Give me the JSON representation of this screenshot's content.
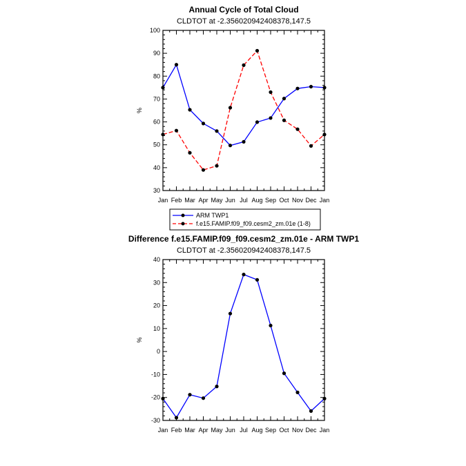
{
  "chart_data": [
    {
      "type": "line",
      "title": "Annual Cycle of Total Cloud",
      "subtitle": "CLDTOT at -2.356020942408378,147.5",
      "ylabel": "%",
      "xlabel": "",
      "ylim": [
        30,
        100
      ],
      "yticks": [
        30,
        40,
        50,
        60,
        70,
        80,
        90,
        100
      ],
      "yticklabels": [
        "30",
        "40",
        "50",
        "60",
        "70",
        "80",
        "90",
        "100"
      ],
      "categories": [
        "Jan",
        "Feb",
        "Mar",
        "Apr",
        "May",
        "Jun",
        "Jul",
        "Aug",
        "Sep",
        "Oct",
        "Nov",
        "Dec",
        "Jan"
      ],
      "grid": false,
      "legend_position": "below",
      "series": [
        {
          "name": "ARM TWP1",
          "color": "#0000ff",
          "dash": "solid",
          "values": [
            75,
            85,
            65.3,
            59.3,
            56,
            49.7,
            51.3,
            59.9,
            61.7,
            70.2,
            74.6,
            75.4,
            75
          ]
        },
        {
          "name": "f.e15.FAMIP.f09_f09.cesm2_zm.01e (1-8)",
          "color": "#ff0000",
          "dash": "dashed",
          "values": [
            54.5,
            56.2,
            46.5,
            39,
            40.8,
            66.2,
            84.8,
            91.1,
            73,
            60.7,
            56.8,
            49.5,
            54.5
          ]
        }
      ]
    },
    {
      "type": "line",
      "title": "Difference f.e15.FAMIP.f09_f09.cesm2_zm.01e - ARM TWP1",
      "subtitle": "CLDTOT at -2.356020942408378,147.5",
      "ylabel": "%",
      "xlabel": "",
      "ylim": [
        -30,
        40
      ],
      "yticks": [
        -30,
        -20,
        -10,
        0,
        10,
        20,
        30,
        40
      ],
      "yticklabels": [
        "-30",
        "-20",
        "-10",
        "0",
        "10",
        "20",
        "30",
        "40"
      ],
      "categories": [
        "Jan",
        "Feb",
        "Mar",
        "Apr",
        "May",
        "Jun",
        "Jul",
        "Aug",
        "Sep",
        "Oct",
        "Nov",
        "Dec",
        "Jan"
      ],
      "grid": false,
      "series": [
        {
          "name": "Difference",
          "color": "#0000ff",
          "dash": "solid",
          "values": [
            -20.5,
            -28.8,
            -18.8,
            -20.3,
            -15.2,
            16.5,
            33.5,
            31.2,
            11.3,
            -9.5,
            -17.8,
            -25.9,
            -20.5
          ]
        }
      ]
    }
  ]
}
